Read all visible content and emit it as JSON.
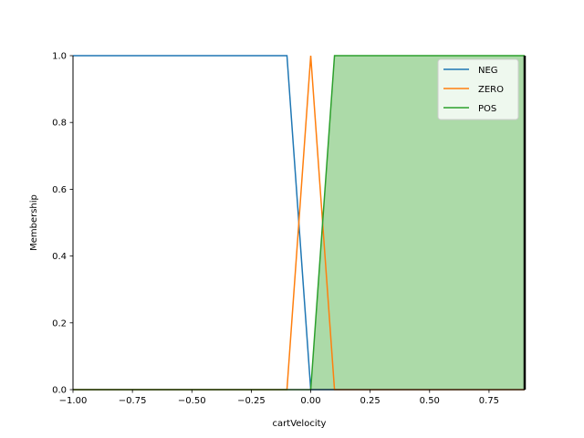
{
  "chart_data": {
    "type": "line",
    "title": "",
    "xlabel": "cartVelocity",
    "ylabel": "Membership",
    "xlim": [
      -1.0,
      0.9
    ],
    "ylim": [
      0.0,
      1.0
    ],
    "xticks": [
      "−1.00",
      "−0.75",
      "−0.50",
      "−0.25",
      "0.00",
      "0.25",
      "0.50",
      "0.75"
    ],
    "xtick_values": [
      -1.0,
      -0.75,
      -0.5,
      -0.25,
      0.0,
      0.25,
      0.5,
      0.75
    ],
    "yticks": [
      "0.0",
      "0.2",
      "0.4",
      "0.6",
      "0.8",
      "1.0"
    ],
    "ytick_values": [
      0.0,
      0.2,
      0.4,
      0.6,
      0.8,
      1.0
    ],
    "grid": false,
    "legend_position": "top-right",
    "series": [
      {
        "name": "NEG",
        "color": "#1f77b4",
        "x": [
          -1.0,
          -0.1,
          0.0,
          0.9
        ],
        "y": [
          1.0,
          1.0,
          0.0,
          0.0
        ]
      },
      {
        "name": "ZERO",
        "color": "#ff7f0e",
        "x": [
          -1.0,
          -0.1,
          0.0,
          0.1,
          0.9
        ],
        "y": [
          0.0,
          0.0,
          1.0,
          0.0,
          0.0
        ]
      },
      {
        "name": "POS",
        "color": "#2ca02c",
        "x": [
          -1.0,
          0.0,
          0.1,
          0.9
        ],
        "y": [
          0.0,
          0.0,
          1.0,
          1.0
        ]
      }
    ],
    "filled_series": "POS",
    "fill_color": "#acdaa8",
    "marker_line": {
      "x": 0.9,
      "color": "#000000"
    }
  }
}
